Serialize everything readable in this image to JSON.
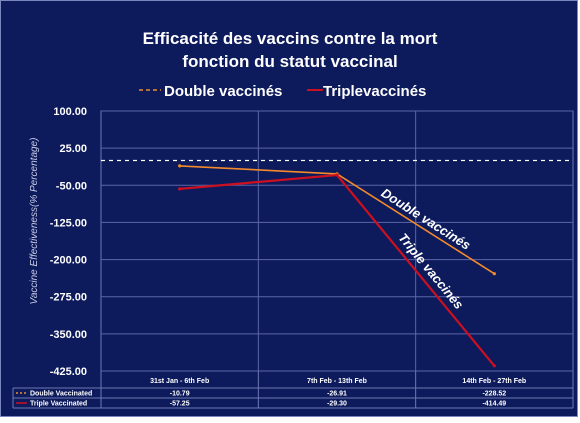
{
  "chart_data": {
    "type": "line",
    "title_line1": "Efficacité des vaccins contre la mort",
    "title_line2": "fonction du statut vaccinal",
    "legend": [
      {
        "label": "Double vaccinés",
        "color": "#f28a2b"
      },
      {
        "label": "Triplevaccinés",
        "color": "#cc1020"
      }
    ],
    "ylabel": "Vaccine Effectiveness(% Percentage)",
    "xlabel": "",
    "categories": [
      "31st Jan - 6th Feb",
      "7th Feb - 13th Feb",
      "14th Feb - 27th Feb"
    ],
    "series": [
      {
        "name": "Double Vaccinated",
        "color": "#f28a2b",
        "values": [
          -10.79,
          -26.91,
          -228.52
        ],
        "labels": [
          "-10.79",
          "-26.91",
          "-228.52"
        ]
      },
      {
        "name": "Triple Vaccinated",
        "color": "#cc1020",
        "values": [
          -57.25,
          -29.3,
          -414.49
        ],
        "labels": [
          "-57.25",
          "-29.30",
          "-414.49"
        ]
      }
    ],
    "yticks": [
      "100.00",
      "25.00",
      "-50.00",
      "-125.00",
      "-200.00",
      "-275.00",
      "-350.00",
      "-425.00"
    ],
    "ylim": [
      -425,
      100
    ],
    "reference_line": {
      "value": 0,
      "style": "dashed",
      "color": "#ffffff"
    },
    "annotations": [
      {
        "text": "Double vaccinés",
        "series": 0
      },
      {
        "text": "Triple vaccinés",
        "series": 1
      }
    ],
    "grid": true,
    "legend_position": "top",
    "data_table": true
  }
}
